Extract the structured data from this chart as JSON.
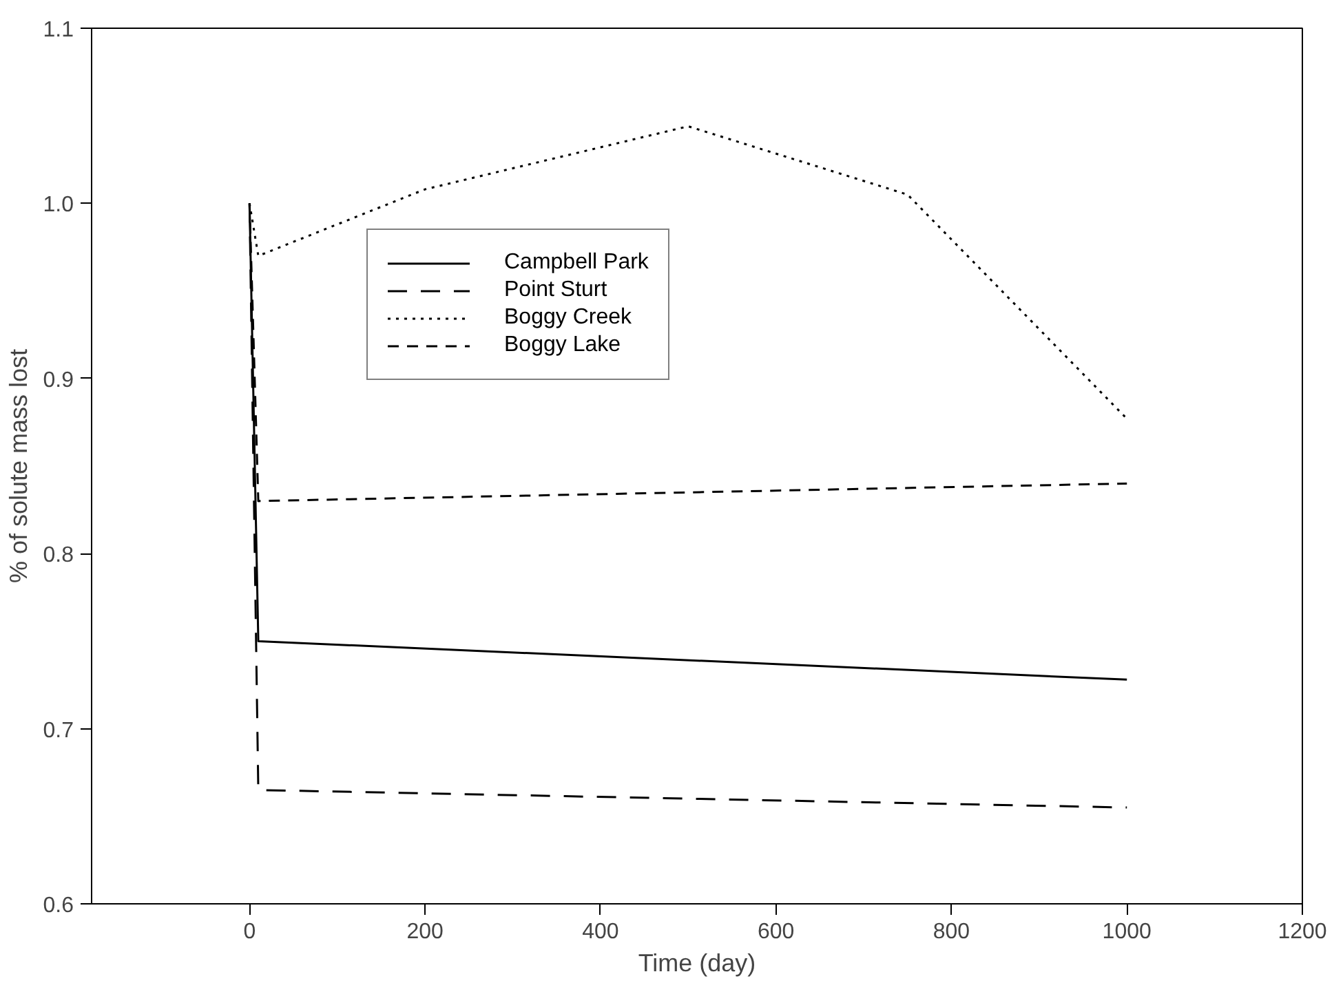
{
  "chart_data": {
    "type": "line",
    "xlabel": "Time (day)",
    "ylabel": "% of solute mass lost",
    "xlim": [
      -180,
      1200
    ],
    "xticks": [
      0,
      200,
      400,
      600,
      800,
      1000,
      1200
    ],
    "ylim": [
      0.6,
      1.1
    ],
    "yticks": [
      0.6,
      0.7,
      0.8,
      0.9,
      {
        "value": 1,
        "label": "1.0"
      },
      1.1
    ],
    "grid": false,
    "legend": "top",
    "marker": "none",
    "series": [
      {
        "name": "Campbell Park",
        "color": "#000000",
        "line_style": "solid",
        "x": [
          0,
          10,
          1000
        ],
        "values": [
          1.0,
          0.75,
          0.728
        ]
      },
      {
        "name": "Point Sturt",
        "color": "#000000",
        "line_style": "longdash",
        "x": [
          0,
          10,
          1000
        ],
        "values": [
          1.0,
          0.665,
          0.655
        ]
      },
      {
        "name": "Boggy Creek",
        "color": "#000000",
        "line_style": "dotted",
        "x": [
          0,
          10,
          200,
          500,
          750,
          1000
        ],
        "values": [
          1.0,
          0.97,
          1.008,
          1.044,
          1.005,
          0.877
        ]
      },
      {
        "name": "Boggy Lake",
        "color": "#000000",
        "line_style": "dashed",
        "x": [
          0,
          10,
          1000
        ],
        "values": [
          1.0,
          0.83,
          0.84
        ]
      }
    ]
  }
}
